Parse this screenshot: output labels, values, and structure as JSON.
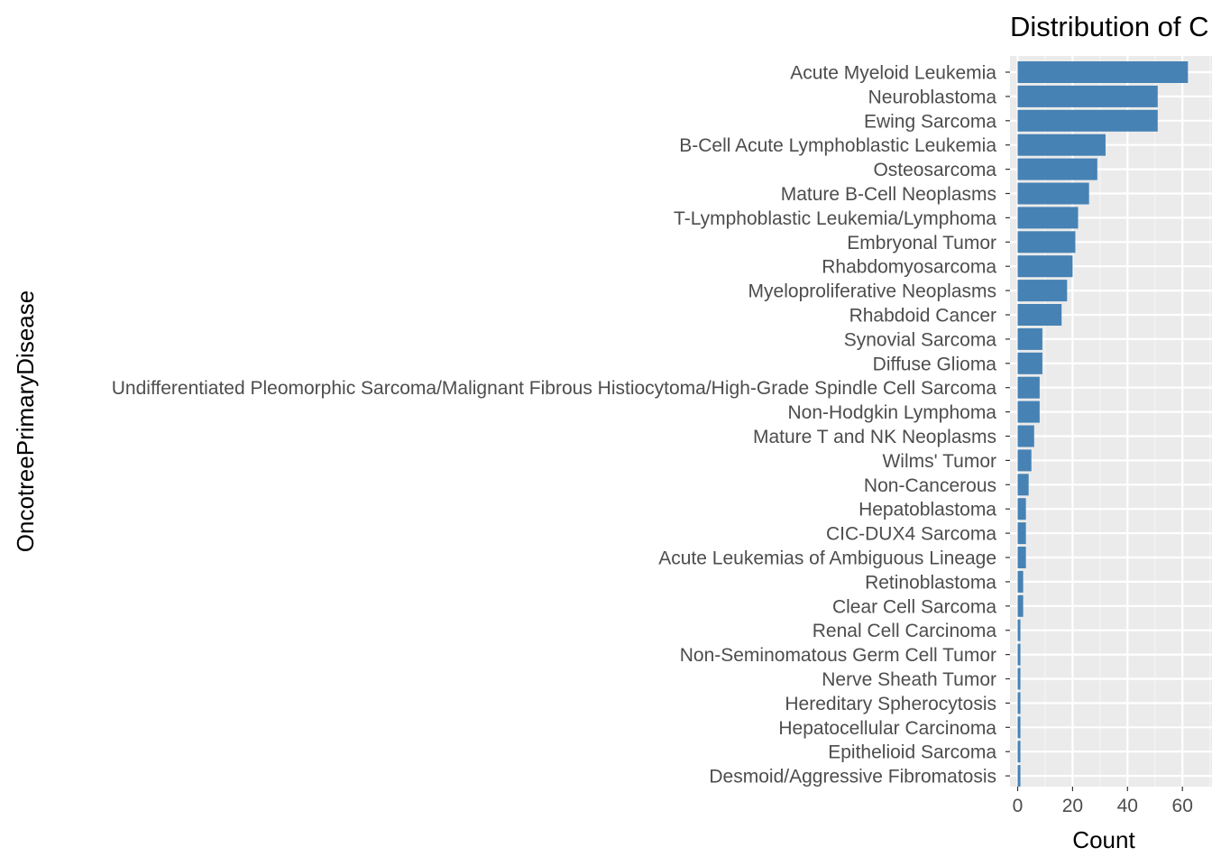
{
  "colors": {
    "bar": "#4682b4",
    "panel": "#ebebeb",
    "grid_major": "#ffffff",
    "grid_minor": "#f5f5f5",
    "tick": "#333333"
  },
  "chart_data": {
    "type": "bar",
    "orientation": "horizontal",
    "title": "Distribution of C",
    "xlabel": "Count",
    "ylabel": "OncotreePrimaryDisease",
    "xlim": [
      -0.3,
      63.3
    ],
    "xticks": [
      0,
      20,
      40,
      60
    ],
    "grid": true,
    "legend": "none",
    "categories": [
      "Acute Myeloid Leukemia",
      "Neuroblastoma",
      "Ewing Sarcoma",
      "B-Cell Acute Lymphoblastic Leukemia",
      "Osteosarcoma",
      "Mature B-Cell Neoplasms",
      "T-Lymphoblastic Leukemia/Lymphoma",
      "Embryonal Tumor",
      "Rhabdomyosarcoma",
      "Myeloproliferative Neoplasms",
      "Rhabdoid Cancer",
      "Synovial Sarcoma",
      "Diffuse Glioma",
      "Undifferentiated Pleomorphic Sarcoma/Malignant Fibrous Histiocytoma/High-Grade Spindle Cell Sarcoma",
      "Non-Hodgkin Lymphoma",
      "Mature T and NK Neoplasms",
      "Wilms' Tumor",
      "Non-Cancerous",
      "Hepatoblastoma",
      "CIC-DUX4 Sarcoma",
      "Acute Leukemias of Ambiguous Lineage",
      "Retinoblastoma",
      "Clear Cell Sarcoma",
      "Renal Cell Carcinoma",
      "Non-Seminomatous Germ Cell Tumor",
      "Nerve Sheath Tumor",
      "Hereditary Spherocytosis",
      "Hepatocellular Carcinoma",
      "Epithelioid Sarcoma",
      "Desmoid/Aggressive Fibromatosis"
    ],
    "values": [
      62,
      51,
      51,
      32,
      29,
      26,
      22,
      21,
      20,
      18,
      16,
      9,
      9,
      8,
      8,
      6,
      5,
      4,
      3,
      3,
      3,
      2,
      2,
      1,
      1,
      1,
      1,
      1,
      1,
      1
    ]
  }
}
